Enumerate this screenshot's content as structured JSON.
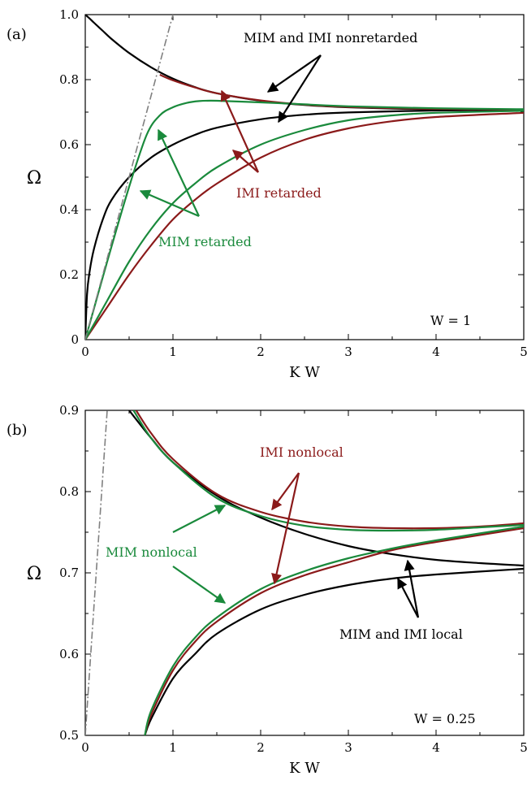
{
  "chart_data": [
    {
      "type": "line",
      "panel_label": "(a)",
      "xlabel": "K W",
      "ylabel": "Ω",
      "xlim": [
        0,
        5
      ],
      "ylim": [
        0,
        1.0
      ],
      "xticks": [
        "0",
        "1",
        "2",
        "3",
        "4",
        "5"
      ],
      "yticks": [
        "0",
        "0.2",
        "0.4",
        "0.6",
        "0.8",
        "1.0"
      ],
      "param_label": "W = 1",
      "grid": false,
      "series": [
        {
          "group": "MIM and IMI nonretarded",
          "color": "#000000",
          "kind": "nonretarded",
          "x": [
            0,
            0.05,
            0.1,
            0.2,
            0.3,
            0.5,
            0.75,
            1,
            1.25,
            1.5,
            2,
            2.5,
            3,
            3.5,
            4,
            5
          ],
          "y": [
            1.0,
            0.988,
            0.975,
            0.95,
            0.925,
            0.882,
            0.838,
            0.803,
            0.777,
            0.758,
            0.735,
            0.722,
            0.715,
            0.711,
            0.709,
            0.708
          ]
        },
        {
          "group": "MIM and IMI nonretarded",
          "color": "#000000",
          "kind": "nonretarded",
          "x": [
            0,
            0.02,
            0.05,
            0.1,
            0.2,
            0.3,
            0.5,
            0.75,
            1,
            1.25,
            1.5,
            2,
            2.5,
            3,
            4,
            5
          ],
          "y": [
            0.0,
            0.14,
            0.21,
            0.28,
            0.37,
            0.43,
            0.5,
            0.56,
            0.6,
            0.63,
            0.652,
            0.678,
            0.692,
            0.699,
            0.705,
            0.707
          ]
        },
        {
          "group": "IMI retarded",
          "color": "#8b1a1a",
          "kind": "retarded",
          "x": [
            0.85,
            1,
            1.25,
            1.5,
            2,
            2.5,
            3,
            4,
            5
          ],
          "y": [
            0.815,
            0.798,
            0.776,
            0.758,
            0.736,
            0.723,
            0.716,
            0.71,
            0.708
          ]
        },
        {
          "group": "IMI retarded",
          "color": "#8b1a1a",
          "kind": "retarded",
          "x": [
            0,
            0.25,
            0.5,
            0.75,
            1,
            1.25,
            1.5,
            2,
            2.5,
            3,
            3.5,
            4,
            5
          ],
          "y": [
            0.0,
            0.1,
            0.2,
            0.29,
            0.37,
            0.43,
            0.48,
            0.56,
            0.615,
            0.65,
            0.672,
            0.685,
            0.698
          ]
        },
        {
          "group": "MIM retarded",
          "color": "#1a8a3c",
          "kind": "retarded",
          "x": [
            0,
            0.25,
            0.5,
            0.75,
            1,
            1.25,
            1.5,
            2,
            2.5,
            3,
            3.5,
            4,
            5
          ],
          "y": [
            0.0,
            0.12,
            0.24,
            0.34,
            0.42,
            0.48,
            0.53,
            0.6,
            0.645,
            0.675,
            0.69,
            0.698,
            0.704
          ]
        },
        {
          "group": "MIM retarded",
          "color": "#1a8a3c",
          "kind": "retarded",
          "x": [
            0,
            0.25,
            0.5,
            0.7,
            0.85,
            1,
            1.15,
            1.3,
            1.5,
            2,
            2.5,
            3,
            4,
            5
          ],
          "y": [
            0.0,
            0.24,
            0.47,
            0.63,
            0.69,
            0.715,
            0.728,
            0.734,
            0.735,
            0.73,
            0.724,
            0.718,
            0.712,
            0.709
          ]
        },
        {
          "group": "light line",
          "color": "#808080",
          "kind": "lightline",
          "x": [
            0,
            1.0
          ],
          "y": [
            0,
            1.0
          ]
        }
      ],
      "annotations": [
        {
          "text": "MIM and IMI nonretarded",
          "color": "#000000"
        },
        {
          "text": "IMI retarded",
          "color": "#8b1a1a"
        },
        {
          "text": "MIM retarded",
          "color": "#1a8a3c"
        }
      ]
    },
    {
      "type": "line",
      "panel_label": "(b)",
      "xlabel": "K W",
      "ylabel": "Ω",
      "xlim": [
        0,
        5
      ],
      "ylim": [
        0.5,
        0.9
      ],
      "xticks": [
        "0",
        "1",
        "2",
        "3",
        "4",
        "5"
      ],
      "yticks": [
        "0.5",
        "0.6",
        "0.7",
        "0.8",
        "0.9"
      ],
      "param_label": "W = 0.25",
      "grid": false,
      "series": [
        {
          "group": "MIM and IMI local",
          "color": "#000000",
          "kind": "local",
          "x": [
            0.5,
            0.75,
            1,
            1.5,
            2,
            2.5,
            3,
            3.5,
            4,
            4.5,
            5
          ],
          "y": [
            0.9,
            0.866,
            0.836,
            0.795,
            0.768,
            0.748,
            0.733,
            0.723,
            0.716,
            0.712,
            0.709
          ]
        },
        {
          "group": "MIM and IMI local",
          "color": "#000000",
          "kind": "local",
          "x": [
            0.68,
            0.75,
            1,
            1.25,
            1.5,
            2,
            2.5,
            3,
            3.5,
            4,
            5
          ],
          "y": [
            0.5,
            0.52,
            0.57,
            0.6,
            0.625,
            0.655,
            0.673,
            0.685,
            0.693,
            0.698,
            0.705
          ]
        },
        {
          "group": "IMI nonlocal",
          "color": "#8b1a1a",
          "kind": "nonlocal",
          "x": [
            0.58,
            0.75,
            1,
            1.5,
            2,
            2.5,
            3,
            3.5,
            4,
            4.5,
            5
          ],
          "y": [
            0.9,
            0.872,
            0.84,
            0.797,
            0.775,
            0.763,
            0.757,
            0.755,
            0.755,
            0.757,
            0.761
          ]
        },
        {
          "group": "IMI nonlocal",
          "color": "#8b1a1a",
          "kind": "nonlocal",
          "x": [
            0.68,
            0.75,
            1,
            1.25,
            1.5,
            2,
            2.5,
            3,
            3.5,
            4,
            5
          ],
          "y": [
            0.5,
            0.525,
            0.58,
            0.615,
            0.64,
            0.675,
            0.697,
            0.713,
            0.728,
            0.738,
            0.755
          ]
        },
        {
          "group": "MIM nonlocal",
          "color": "#1a8a3c",
          "kind": "nonlocal",
          "x": [
            0.55,
            0.75,
            1,
            1.5,
            2,
            2.5,
            3,
            3.5,
            4,
            4.5,
            5
          ],
          "y": [
            0.9,
            0.866,
            0.836,
            0.792,
            0.77,
            0.758,
            0.753,
            0.752,
            0.753,
            0.756,
            0.759
          ]
        },
        {
          "group": "MIM nonlocal",
          "color": "#1a8a3c",
          "kind": "nonlocal",
          "x": [
            0.68,
            0.75,
            1,
            1.25,
            1.5,
            2,
            2.5,
            3,
            3.5,
            4,
            5
          ],
          "y": [
            0.5,
            0.53,
            0.585,
            0.62,
            0.645,
            0.68,
            0.702,
            0.718,
            0.73,
            0.74,
            0.757
          ]
        },
        {
          "group": "light line",
          "color": "#808080",
          "kind": "lightline",
          "x": [
            0,
            0.25
          ],
          "y": [
            0.5,
            0.9
          ]
        }
      ],
      "annotations": [
        {
          "text": "IMI nonlocal",
          "color": "#8b1a1a"
        },
        {
          "text": "MIM nonlocal",
          "color": "#1a8a3c"
        },
        {
          "text": "MIM and IMI local",
          "color": "#000000"
        }
      ]
    }
  ]
}
